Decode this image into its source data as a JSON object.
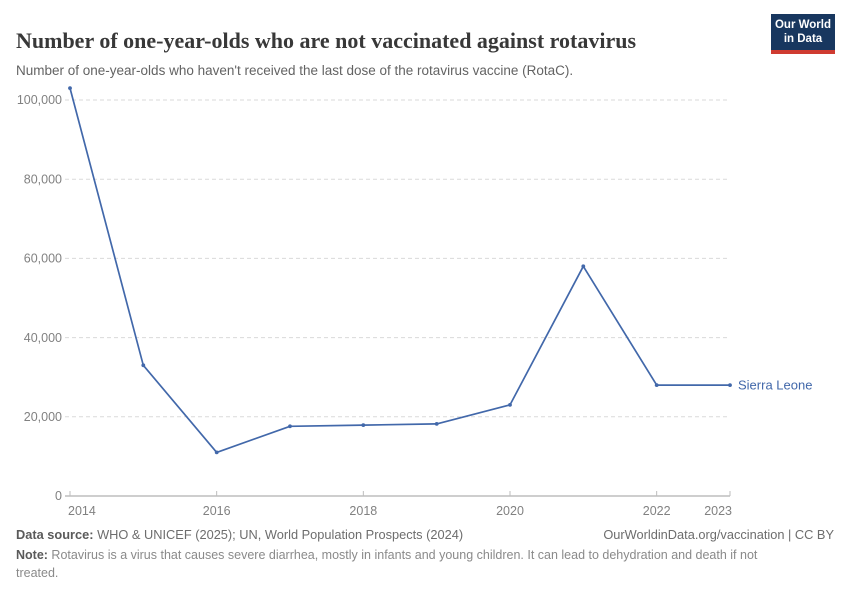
{
  "header": {
    "title": "Number of one-year-olds who are not vaccinated against rotavirus",
    "subtitle": "Number of one-year-olds who haven't received the last dose of the rotavirus vaccine (RotaC).",
    "logo_line1": "Our World",
    "logo_line2": "in Data"
  },
  "chart_data": {
    "type": "line",
    "title": "Number of one-year-olds who are not vaccinated against rotavirus",
    "subtitle": "Number of one-year-olds who haven't received the last dose of the rotavirus vaccine (RotaC).",
    "x": [
      2014,
      2015,
      2016,
      2017,
      2018,
      2019,
      2020,
      2021,
      2022,
      2023
    ],
    "series": [
      {
        "name": "Sierra Leone",
        "values": [
          103000,
          33000,
          11000,
          17600,
          17900,
          18200,
          23000,
          58000,
          28000,
          28000
        ],
        "color": "#4268aa"
      }
    ],
    "xlabel": "",
    "ylabel": "",
    "ylim": [
      0,
      103000
    ],
    "yticks": [
      0,
      20000,
      40000,
      60000,
      80000,
      100000
    ],
    "xticks": [
      2014,
      2016,
      2018,
      2020,
      2022,
      2023
    ],
    "grid": "horizontal-dashed",
    "legend_position": "line-end-label",
    "end_label": "Sierra Leone"
  },
  "footer": {
    "data_source_label": "Data source:",
    "data_source_text": " WHO & UNICEF (2025); UN, World Population Prospects (2024)",
    "link_text": "OurWorldinData.org/vaccination | CC BY",
    "note_label": "Note:",
    "note_text": " Rotavirus is a virus that causes severe diarrhea, mostly in infants and young children. It can lead to dehydration and death if not treated."
  },
  "colors": {
    "line": "#4268aa",
    "gridline": "#dadada",
    "axis": "#9e9e9e",
    "tick": "#bdbdbd",
    "tick_label": "#818181",
    "logo_bg": "#18375f",
    "logo_stripe": "#cf3b31"
  }
}
